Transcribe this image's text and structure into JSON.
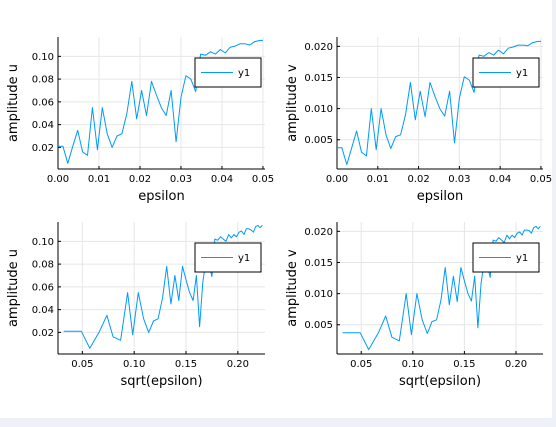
{
  "series_color": "#009af9",
  "chart_data": [
    {
      "type": "line",
      "xlabel": "epsilon",
      "ylabel": "amplitude u",
      "xlim": [
        0,
        0.0505
      ],
      "ylim": [
        0.001,
        0.117
      ],
      "xticks": [
        0.0,
        0.01,
        0.02,
        0.03,
        0.04,
        0.05
      ],
      "xtick_labels": [
        "0.00",
        "0.01",
        "0.02",
        "0.03",
        "0.04",
        "0.05"
      ],
      "yticks": [
        0.02,
        0.04,
        0.06,
        0.08,
        0.1
      ],
      "ytick_labels": [
        "0.02",
        "0.04",
        "0.06",
        "0.08",
        "0.10"
      ],
      "grid": true,
      "legend_position": "top-right",
      "series": [
        {
          "name": "y1",
          "x": [
            0.0,
            0.0012,
            0.0024,
            0.0036,
            0.0048,
            0.006,
            0.0072,
            0.0084,
            0.0096,
            0.0108,
            0.012,
            0.0132,
            0.0144,
            0.0156,
            0.0168,
            0.018,
            0.0192,
            0.0204,
            0.0216,
            0.0228,
            0.024,
            0.0252,
            0.0264,
            0.0276,
            0.0288,
            0.03,
            0.0312,
            0.0324,
            0.0336,
            0.0348,
            0.036,
            0.0372,
            0.0384,
            0.0396,
            0.0408,
            0.042,
            0.0432,
            0.0444,
            0.0456,
            0.0468,
            0.048,
            0.0492,
            0.05
          ],
          "values": [
            0.021,
            0.021,
            0.006,
            0.021,
            0.035,
            0.016,
            0.013,
            0.055,
            0.018,
            0.055,
            0.032,
            0.02,
            0.03,
            0.032,
            0.05,
            0.078,
            0.045,
            0.07,
            0.048,
            0.078,
            0.066,
            0.055,
            0.048,
            0.07,
            0.025,
            0.064,
            0.083,
            0.08,
            0.069,
            0.102,
            0.101,
            0.104,
            0.102,
            0.106,
            0.103,
            0.108,
            0.109,
            0.111,
            0.111,
            0.11,
            0.113,
            0.114,
            0.114
          ]
        }
      ]
    },
    {
      "type": "line",
      "xlabel": "epsilon",
      "ylabel": "amplitude v",
      "xlim": [
        0,
        0.0505
      ],
      "ylim": [
        0.0003,
        0.0215
      ],
      "xticks": [
        0.0,
        0.01,
        0.02,
        0.03,
        0.04,
        0.05
      ],
      "xtick_labels": [
        "0.00",
        "0.01",
        "0.02",
        "0.03",
        "0.04",
        "0.05"
      ],
      "yticks": [
        0.005,
        0.01,
        0.015,
        0.02
      ],
      "ytick_labels": [
        "0.005",
        "0.010",
        "0.015",
        "0.020"
      ],
      "grid": true,
      "legend_position": "top-right",
      "series": [
        {
          "name": "y1",
          "x": [
            0.0,
            0.0012,
            0.0024,
            0.0036,
            0.0048,
            0.006,
            0.0072,
            0.0084,
            0.0096,
            0.0108,
            0.012,
            0.0132,
            0.0144,
            0.0156,
            0.0168,
            0.018,
            0.0192,
            0.0204,
            0.0216,
            0.0228,
            0.024,
            0.0252,
            0.0264,
            0.0276,
            0.0288,
            0.03,
            0.0312,
            0.0324,
            0.0336,
            0.0348,
            0.036,
            0.0372,
            0.0384,
            0.0396,
            0.0408,
            0.042,
            0.0432,
            0.0444,
            0.0456,
            0.0468,
            0.048,
            0.0492,
            0.05
          ],
          "values": [
            0.0037,
            0.0037,
            0.001,
            0.0037,
            0.0064,
            0.003,
            0.0024,
            0.01,
            0.0034,
            0.01,
            0.0058,
            0.0036,
            0.0055,
            0.0058,
            0.009,
            0.0142,
            0.0082,
            0.0128,
            0.0087,
            0.0142,
            0.012,
            0.01,
            0.0088,
            0.0128,
            0.0045,
            0.0117,
            0.0151,
            0.0146,
            0.0126,
            0.0186,
            0.0184,
            0.019,
            0.0186,
            0.0194,
            0.0188,
            0.0197,
            0.0199,
            0.0202,
            0.0202,
            0.0201,
            0.0206,
            0.0208,
            0.0208
          ]
        }
      ]
    },
    {
      "type": "line",
      "xlabel": "sqrt(epsilon)",
      "ylabel": "amplitude u",
      "xlim": [
        0.0265,
        0.2262
      ],
      "ylim": [
        0.001,
        0.117
      ],
      "xticks": [
        0.05,
        0.1,
        0.15,
        0.2
      ],
      "xtick_labels": [
        "0.05",
        "0.10",
        "0.15",
        "0.20"
      ],
      "yticks": [
        0.02,
        0.04,
        0.06,
        0.08,
        0.1
      ],
      "ytick_labels": [
        "0.02",
        "0.04",
        "0.06",
        "0.08",
        "0.10"
      ],
      "grid": true,
      "legend_position": "top-right",
      "series": [
        {
          "name": "y1",
          "x": [
            0.032,
            0.0416,
            0.049,
            0.0572,
            0.0666,
            0.0737,
            0.0797,
            0.0869,
            0.0936,
            0.0986,
            0.104,
            0.1091,
            0.114,
            0.1186,
            0.1231,
            0.1273,
            0.1314,
            0.1354,
            0.1393,
            0.143,
            0.1466,
            0.1501,
            0.1535,
            0.1568,
            0.16,
            0.1631,
            0.1662,
            0.1692,
            0.1721,
            0.175,
            0.1778,
            0.1806,
            0.1833,
            0.186,
            0.1886,
            0.1912,
            0.1937,
            0.1962,
            0.1987,
            0.2011,
            0.2035,
            0.2059,
            0.2082,
            0.2105,
            0.2128,
            0.215,
            0.2172,
            0.2194,
            0.2215,
            0.2236
          ],
          "values": [
            0.021,
            0.021,
            0.021,
            0.006,
            0.021,
            0.035,
            0.016,
            0.013,
            0.055,
            0.018,
            0.055,
            0.032,
            0.02,
            0.03,
            0.032,
            0.05,
            0.078,
            0.045,
            0.07,
            0.048,
            0.078,
            0.066,
            0.055,
            0.048,
            0.07,
            0.025,
            0.064,
            0.083,
            0.08,
            0.069,
            0.102,
            0.101,
            0.104,
            0.102,
            0.1,
            0.106,
            0.103,
            0.106,
            0.104,
            0.108,
            0.109,
            0.106,
            0.111,
            0.111,
            0.11,
            0.108,
            0.113,
            0.114,
            0.112,
            0.114
          ]
        }
      ]
    },
    {
      "type": "line",
      "xlabel": "sqrt(epsilon)",
      "ylabel": "amplitude v",
      "xlim": [
        0.0265,
        0.2262
      ],
      "ylim": [
        0.0003,
        0.0215
      ],
      "xticks": [
        0.05,
        0.1,
        0.15,
        0.2
      ],
      "xtick_labels": [
        "0.05",
        "0.10",
        "0.15",
        "0.20"
      ],
      "yticks": [
        0.005,
        0.01,
        0.015,
        0.02
      ],
      "ytick_labels": [
        "0.005",
        "0.010",
        "0.015",
        "0.020"
      ],
      "grid": true,
      "legend_position": "top-right",
      "series": [
        {
          "name": "y1",
          "x": [
            0.032,
            0.0416,
            0.049,
            0.0572,
            0.0666,
            0.0737,
            0.0797,
            0.0869,
            0.0936,
            0.0986,
            0.104,
            0.1091,
            0.114,
            0.1186,
            0.1231,
            0.1273,
            0.1314,
            0.1354,
            0.1393,
            0.143,
            0.1466,
            0.1501,
            0.1535,
            0.1568,
            0.16,
            0.1631,
            0.1662,
            0.1692,
            0.1721,
            0.175,
            0.1778,
            0.1806,
            0.1833,
            0.186,
            0.1886,
            0.1912,
            0.1937,
            0.1962,
            0.1987,
            0.2011,
            0.2035,
            0.2059,
            0.2082,
            0.2105,
            0.2128,
            0.215,
            0.2172,
            0.2194,
            0.2215,
            0.2236
          ],
          "values": [
            0.0037,
            0.0037,
            0.0037,
            0.001,
            0.0037,
            0.0064,
            0.003,
            0.0024,
            0.01,
            0.0034,
            0.01,
            0.0058,
            0.0036,
            0.0055,
            0.0058,
            0.009,
            0.0142,
            0.0082,
            0.0128,
            0.0087,
            0.0142,
            0.012,
            0.01,
            0.0088,
            0.0128,
            0.0045,
            0.0117,
            0.0151,
            0.0146,
            0.0126,
            0.0186,
            0.0184,
            0.019,
            0.0186,
            0.0182,
            0.0194,
            0.0188,
            0.0194,
            0.019,
            0.0197,
            0.0199,
            0.0194,
            0.0202,
            0.0202,
            0.0201,
            0.0197,
            0.0206,
            0.0208,
            0.0204,
            0.0208
          ]
        }
      ]
    }
  ]
}
